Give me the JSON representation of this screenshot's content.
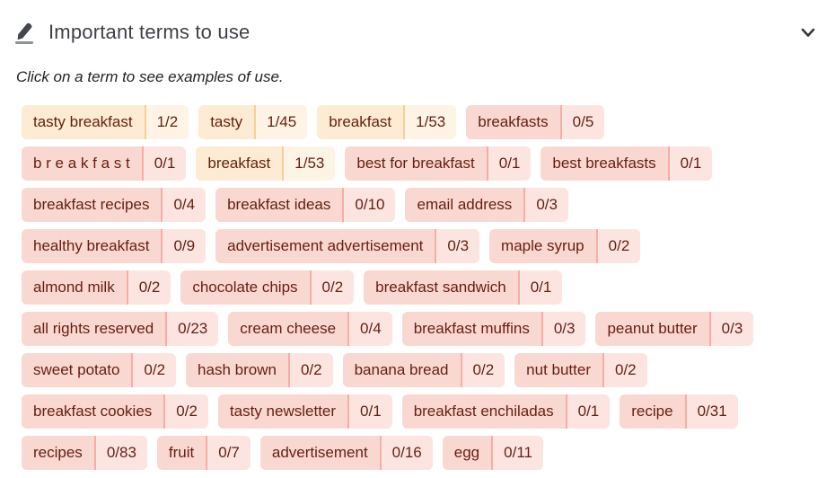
{
  "header": {
    "title": "Important terms to use"
  },
  "instruction": "Click on a term to see examples of use.",
  "colors": {
    "term_text": "#651e10",
    "used_term_bg": "#fdecd3",
    "used_count_bg": "#fdf4e6",
    "used_divider": "#f6cf97",
    "unused_term_bg": "#fad8d2",
    "unused_count_bg": "#fce5e1",
    "unused_divider": "#f4aea6",
    "title_text": "#3f4147",
    "icon_color": "#44464e"
  },
  "rows": [
    [
      {
        "term": "tasty breakfast",
        "count": "1/2",
        "used": true
      },
      {
        "term": "tasty",
        "count": "1/45",
        "used": true
      },
      {
        "term": "breakfast",
        "count": "1/53",
        "used": true
      },
      {
        "term": "breakfasts",
        "count": "0/5",
        "used": false
      }
    ],
    [
      {
        "term": "b r e a k f a s t",
        "count": "0/1",
        "used": false
      },
      {
        "term": "breakfast",
        "count": "1/53",
        "used": true
      },
      {
        "term": "best for breakfast",
        "count": "0/1",
        "used": false
      },
      {
        "term": "best breakfasts",
        "count": "0/1",
        "used": false
      }
    ],
    [
      {
        "term": "breakfast recipes",
        "count": "0/4",
        "used": false
      },
      {
        "term": "breakfast ideas",
        "count": "0/10",
        "used": false
      },
      {
        "term": "email address",
        "count": "0/3",
        "used": false
      }
    ],
    [
      {
        "term": "healthy breakfast",
        "count": "0/9",
        "used": false
      },
      {
        "term": "advertisement advertisement",
        "count": "0/3",
        "used": false
      },
      {
        "term": "maple syrup",
        "count": "0/2",
        "used": false
      }
    ],
    [
      {
        "term": "almond milk",
        "count": "0/2",
        "used": false
      },
      {
        "term": "chocolate chips",
        "count": "0/2",
        "used": false
      },
      {
        "term": "breakfast sandwich",
        "count": "0/1",
        "used": false
      }
    ],
    [
      {
        "term": "all rights reserved",
        "count": "0/23",
        "used": false
      },
      {
        "term": "cream cheese",
        "count": "0/4",
        "used": false
      },
      {
        "term": "breakfast muffins",
        "count": "0/3",
        "used": false
      },
      {
        "term": "peanut butter",
        "count": "0/3",
        "used": false
      }
    ],
    [
      {
        "term": "sweet potato",
        "count": "0/2",
        "used": false
      },
      {
        "term": "hash brown",
        "count": "0/2",
        "used": false
      },
      {
        "term": "banana bread",
        "count": "0/2",
        "used": false
      },
      {
        "term": "nut butter",
        "count": "0/2",
        "used": false
      }
    ],
    [
      {
        "term": "breakfast cookies",
        "count": "0/2",
        "used": false
      },
      {
        "term": "tasty newsletter",
        "count": "0/1",
        "used": false
      },
      {
        "term": "breakfast enchiladas",
        "count": "0/1",
        "used": false
      },
      {
        "term": "recipe",
        "count": "0/31",
        "used": false
      }
    ],
    [
      {
        "term": "recipes",
        "count": "0/83",
        "used": false
      },
      {
        "term": "fruit",
        "count": "0/7",
        "used": false
      },
      {
        "term": "advertisement",
        "count": "0/16",
        "used": false
      },
      {
        "term": "egg",
        "count": "0/11",
        "used": false
      }
    ]
  ]
}
